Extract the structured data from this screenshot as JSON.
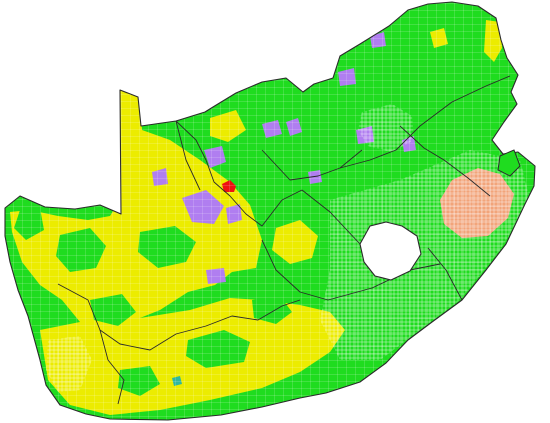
{
  "map": {
    "colors": {
      "background": "#ffffff",
      "green": "#1fdc1f",
      "yellow": "#ecec00",
      "purple": "#b07ef0",
      "salmon": "#f2a47a",
      "red": "#ee1111",
      "teal": "#2fb7a0",
      "border": "#2a2a2a",
      "ward_line": "#ffffff"
    }
  }
}
